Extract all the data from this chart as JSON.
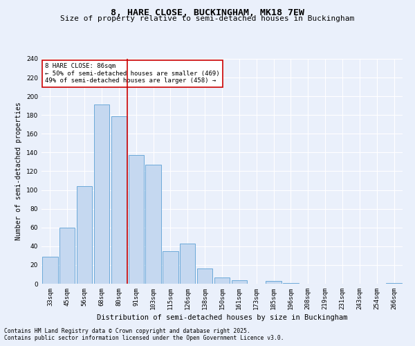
{
  "title": "8, HARE CLOSE, BUCKINGHAM, MK18 7EW",
  "subtitle": "Size of property relative to semi-detached houses in Buckingham",
  "xlabel": "Distribution of semi-detached houses by size in Buckingham",
  "ylabel": "Number of semi-detached properties",
  "categories": [
    "33sqm",
    "45sqm",
    "56sqm",
    "68sqm",
    "80sqm",
    "91sqm",
    "103sqm",
    "115sqm",
    "126sqm",
    "138sqm",
    "150sqm",
    "161sqm",
    "173sqm",
    "185sqm",
    "196sqm",
    "208sqm",
    "219sqm",
    "231sqm",
    "243sqm",
    "254sqm",
    "266sqm"
  ],
  "values": [
    29,
    60,
    104,
    191,
    179,
    137,
    127,
    35,
    43,
    16,
    7,
    4,
    0,
    3,
    1,
    0,
    0,
    0,
    0,
    0,
    1
  ],
  "bar_color": "#c5d8f0",
  "bar_edge_color": "#5a9fd4",
  "vline_x": 4.5,
  "vline_color": "#cc0000",
  "annotation_title": "8 HARE CLOSE: 86sqm",
  "annotation_line1": "← 50% of semi-detached houses are smaller (469)",
  "annotation_line2": "49% of semi-detached houses are larger (458) →",
  "annotation_box_color": "#cc0000",
  "ylim": [
    0,
    240
  ],
  "yticks": [
    0,
    20,
    40,
    60,
    80,
    100,
    120,
    140,
    160,
    180,
    200,
    220,
    240
  ],
  "footnote1": "Contains HM Land Registry data © Crown copyright and database right 2025.",
  "footnote2": "Contains public sector information licensed under the Open Government Licence v3.0.",
  "bg_color": "#eaf0fb",
  "plot_bg_color": "#eaf0fb",
  "grid_color": "#ffffff",
  "title_fontsize": 9.5,
  "subtitle_fontsize": 8.0,
  "xlabel_fontsize": 7.5,
  "ylabel_fontsize": 7.0,
  "tick_fontsize": 6.5,
  "annot_fontsize": 6.5,
  "footnote_fontsize": 5.8
}
